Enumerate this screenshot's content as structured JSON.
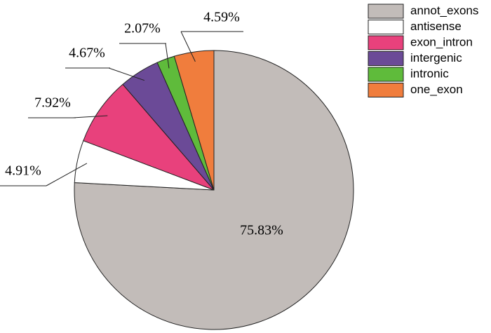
{
  "chart_data": {
    "type": "pie",
    "categories": [
      "annot_exons",
      "antisense",
      "exon_intron",
      "intergenic",
      "intronic",
      "one_exon"
    ],
    "values": [
      75.83,
      4.91,
      7.92,
      4.67,
      2.07,
      4.59
    ],
    "value_labels": [
      "75.83%",
      "4.91%",
      "7.92%",
      "4.67%",
      "2.07%",
      "4.59%"
    ],
    "colors": [
      "#c2bcb9",
      "#ffffff",
      "#e8417c",
      "#6b4a97",
      "#5fbb3b",
      "#f07d3d"
    ],
    "legend": "top-right"
  }
}
